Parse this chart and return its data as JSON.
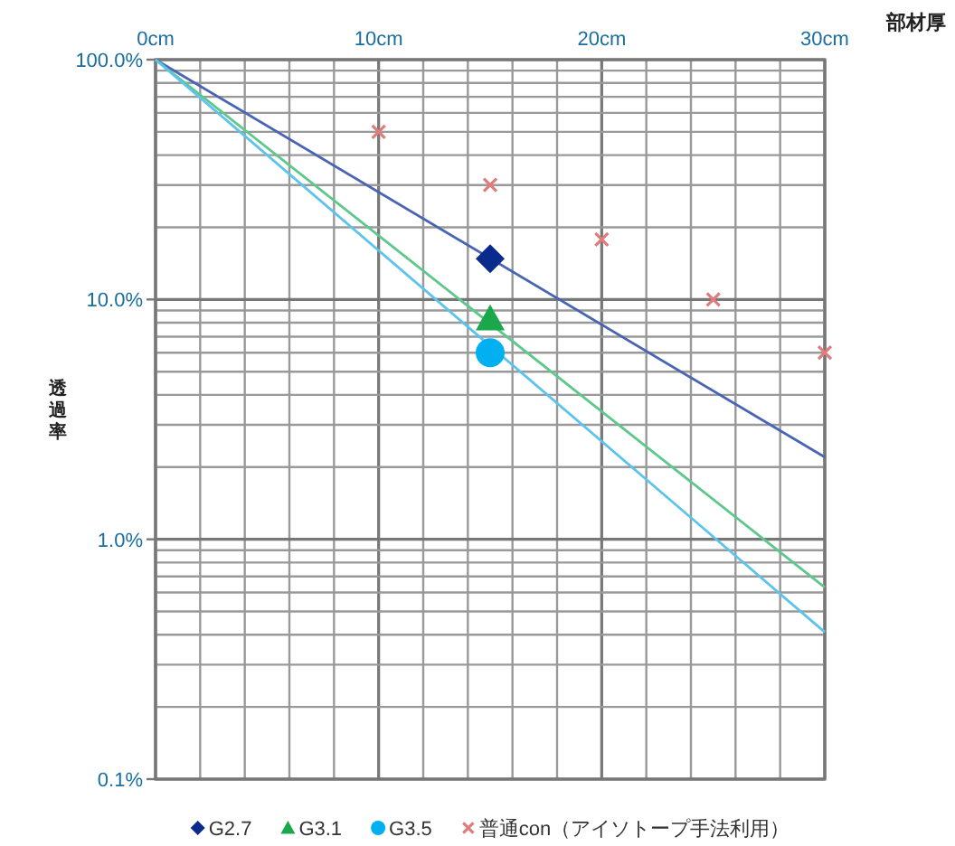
{
  "chart_data": {
    "type": "line",
    "xlabel": "部材厚",
    "ylabel": "透過率",
    "xlim": [
      0,
      30
    ],
    "ylim": [
      0.1,
      100
    ],
    "log": "y",
    "grid": true,
    "legend": "bottom",
    "xticks": [
      {
        "value": 0,
        "label": "0cm"
      },
      {
        "value": 2,
        "label": null
      },
      {
        "value": 4,
        "label": null
      },
      {
        "value": 6,
        "label": null
      },
      {
        "value": 8,
        "label": null
      },
      {
        "value": 10,
        "label": "10cm"
      },
      {
        "value": 12,
        "label": null
      },
      {
        "value": 14,
        "label": null
      },
      {
        "value": 16,
        "label": null
      },
      {
        "value": 18,
        "label": null
      },
      {
        "value": 20,
        "label": "20cm"
      },
      {
        "value": 22,
        "label": null
      },
      {
        "value": 24,
        "label": null
      },
      {
        "value": 26,
        "label": null
      },
      {
        "value": 28,
        "label": null
      },
      {
        "value": 30,
        "label": "30cm"
      }
    ],
    "yticks": [
      {
        "value": 0.1,
        "label": "0.1%"
      },
      {
        "value": 0.2,
        "label": null
      },
      {
        "value": 0.3,
        "label": null
      },
      {
        "value": 0.4,
        "label": null
      },
      {
        "value": 0.5,
        "label": null
      },
      {
        "value": 0.6,
        "label": null
      },
      {
        "value": 0.7,
        "label": null
      },
      {
        "value": 0.8,
        "label": null
      },
      {
        "value": 0.9,
        "label": null
      },
      {
        "value": 1,
        "label": "1.0%"
      },
      {
        "value": 2,
        "label": null
      },
      {
        "value": 3,
        "label": null
      },
      {
        "value": 4,
        "label": null
      },
      {
        "value": 5,
        "label": null
      },
      {
        "value": 6,
        "label": null
      },
      {
        "value": 7,
        "label": null
      },
      {
        "value": 8,
        "label": null
      },
      {
        "value": 9,
        "label": null
      },
      {
        "value": 10,
        "label": "10.0%"
      },
      {
        "value": 20,
        "label": null
      },
      {
        "value": 30,
        "label": null
      },
      {
        "value": 40,
        "label": null
      },
      {
        "value": 50,
        "label": null
      },
      {
        "value": 60,
        "label": null
      },
      {
        "value": 70,
        "label": null
      },
      {
        "value": 80,
        "label": null
      },
      {
        "value": 90,
        "label": null
      },
      {
        "value": 100,
        "label": "100.0%"
      }
    ],
    "series": [
      {
        "color": "#4a64b4",
        "x": [
          0,
          30
        ],
        "values": [
          100,
          2.2
        ],
        "marker": "none"
      },
      {
        "color": "#5cc88a",
        "x": [
          0,
          30
        ],
        "values": [
          100,
          0.63
        ],
        "marker": "none"
      },
      {
        "color": "#5cc4ec",
        "x": [
          0,
          30
        ],
        "values": [
          100,
          0.41
        ],
        "marker": "none"
      },
      {
        "type": "scatter",
        "name": "G2.7",
        "color": "#0a2a8c",
        "x": [
          15
        ],
        "values": [
          14.8
        ],
        "marker": "diamond"
      },
      {
        "type": "scatter",
        "name": "G3.1",
        "color": "#1aa84a",
        "x": [
          15
        ],
        "values": [
          8.3
        ],
        "marker": "triangle"
      },
      {
        "type": "scatter",
        "name": "G3.5",
        "color": "#00b0f0",
        "x": [
          15
        ],
        "values": [
          6.0
        ],
        "marker": "circle"
      },
      {
        "type": "scatter",
        "name": "普通con（アイソトープ手法利用）",
        "color": "#e07c7c",
        "x": [
          10,
          15,
          20,
          25,
          30
        ],
        "values": [
          50,
          30,
          17.8,
          10,
          6.0
        ],
        "marker": "cross"
      }
    ]
  }
}
